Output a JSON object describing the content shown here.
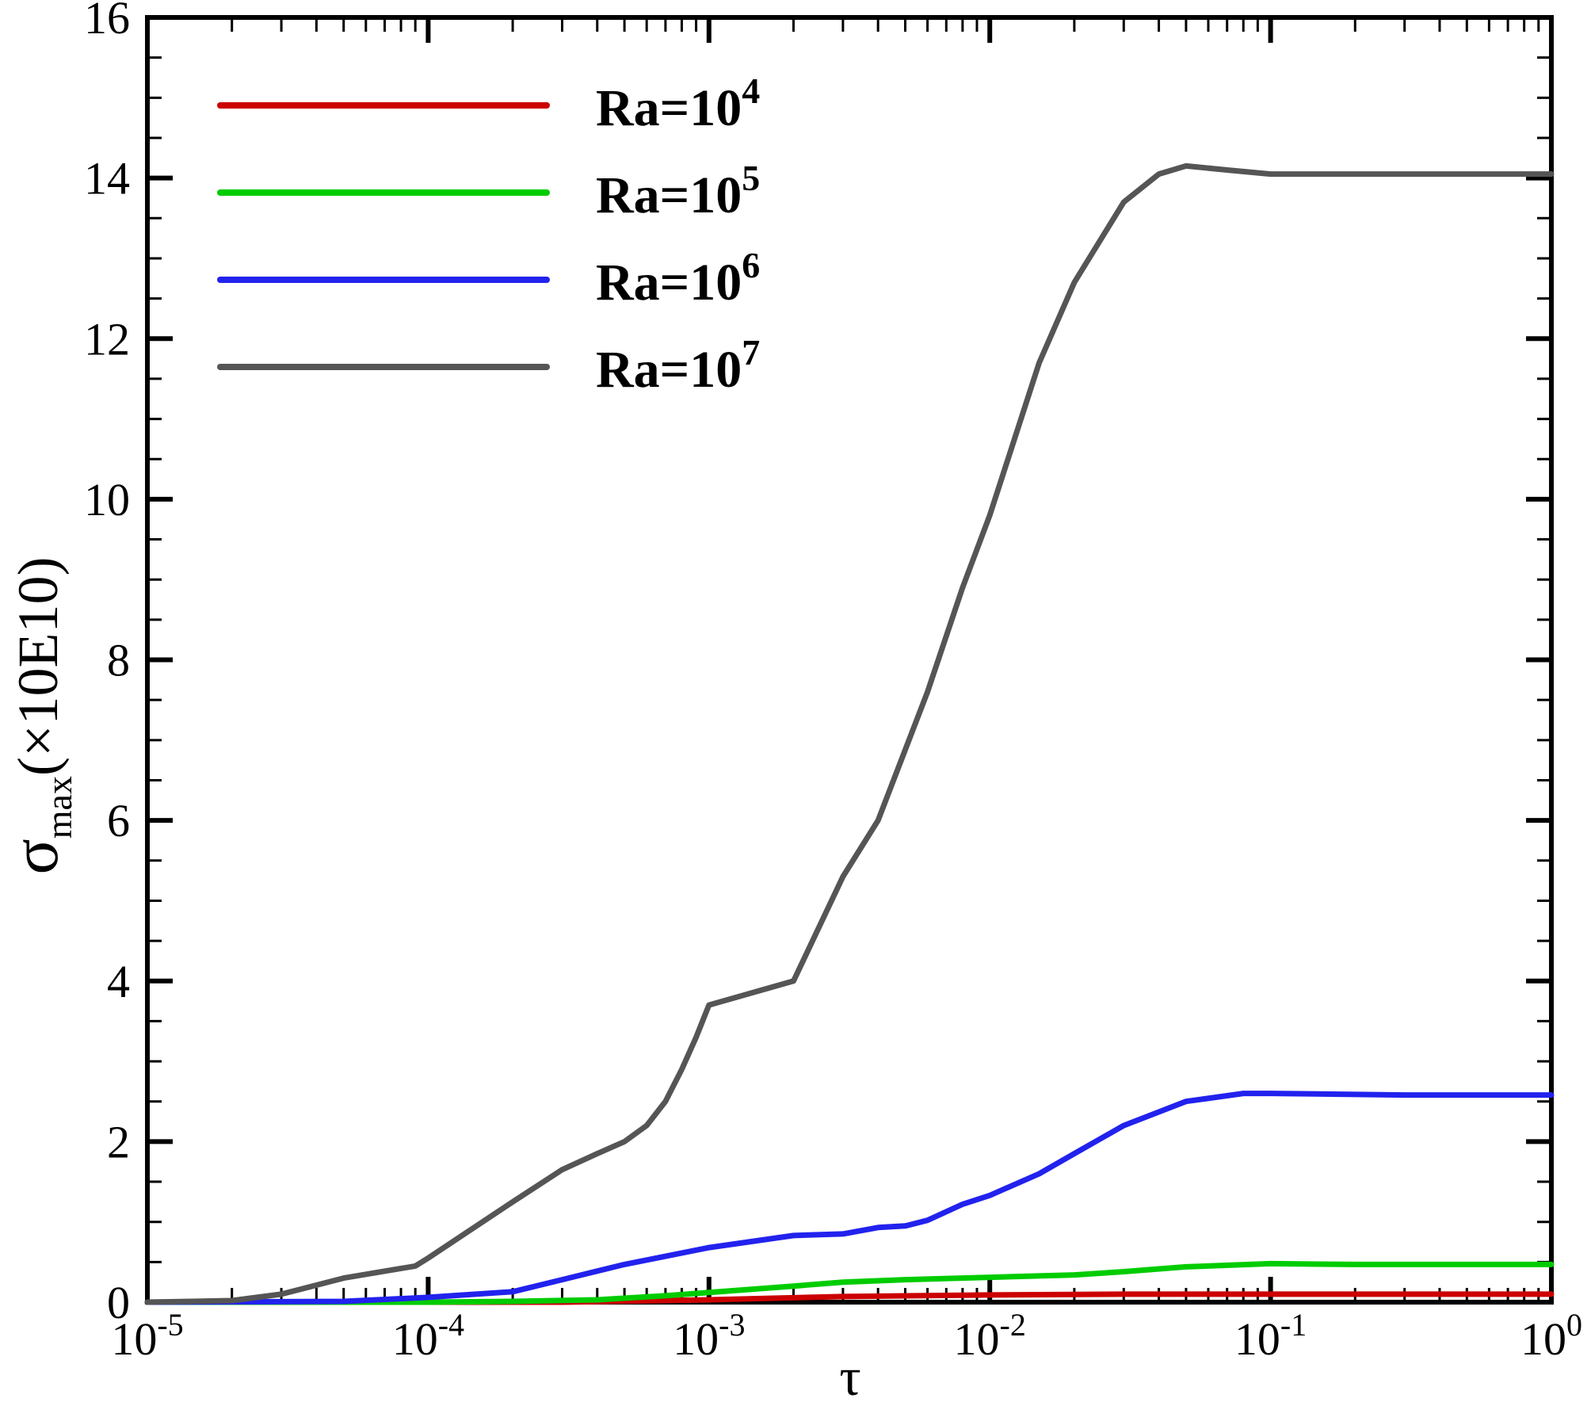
{
  "chart_data": {
    "type": "line",
    "xlabel": "τ",
    "ylabel": {
      "base": "σ",
      "sub": "max",
      "rest": "(×10E10)"
    },
    "x_scale": "log",
    "xlim": [
      1e-05,
      1
    ],
    "ylim": [
      0,
      16
    ],
    "x_ticks": [
      {
        "base": "10",
        "exp": "-5",
        "value": 1e-05
      },
      {
        "base": "10",
        "exp": "-4",
        "value": 0.0001
      },
      {
        "base": "10",
        "exp": "-3",
        "value": 0.001
      },
      {
        "base": "10",
        "exp": "-2",
        "value": 0.01
      },
      {
        "base": "10",
        "exp": "-1",
        "value": 0.1
      },
      {
        "base": "10",
        "exp": "0",
        "value": 1
      }
    ],
    "y_ticks": [
      "0",
      "2",
      "4",
      "6",
      "8",
      "10",
      "12",
      "14",
      "16"
    ],
    "legend_position": "top-left",
    "series": [
      {
        "name": "Ra=10^4",
        "label_base": "Ra=10",
        "label_exp": "4",
        "color": "#cc0000",
        "points": [
          [
            1e-05,
            0.0
          ],
          [
            0.0001,
            0.0
          ],
          [
            0.0003,
            0.0
          ],
          [
            0.001,
            0.03
          ],
          [
            0.003,
            0.07
          ],
          [
            0.01,
            0.09
          ],
          [
            0.03,
            0.1
          ],
          [
            0.1,
            0.1
          ],
          [
            1,
            0.1
          ]
        ]
      },
      {
        "name": "Ra=10^5",
        "label_base": "Ra=10",
        "label_exp": "5",
        "color": "#00cc00",
        "points": [
          [
            1e-05,
            0.0
          ],
          [
            0.0001,
            0.0
          ],
          [
            0.0002,
            0.01
          ],
          [
            0.0004,
            0.03
          ],
          [
            0.0007,
            0.08
          ],
          [
            0.001,
            0.12
          ],
          [
            0.002,
            0.2
          ],
          [
            0.003,
            0.25
          ],
          [
            0.005,
            0.28
          ],
          [
            0.01,
            0.31
          ],
          [
            0.02,
            0.34
          ],
          [
            0.03,
            0.38
          ],
          [
            0.05,
            0.44
          ],
          [
            0.1,
            0.48
          ],
          [
            0.2,
            0.47
          ],
          [
            0.5,
            0.47
          ],
          [
            1,
            0.47
          ]
        ]
      },
      {
        "name": "Ra=10^6",
        "label_base": "Ra=10",
        "label_exp": "6",
        "color": "#2222ee",
        "points": [
          [
            1e-05,
            0.0
          ],
          [
            5e-05,
            0.01
          ],
          [
            0.0001,
            0.06
          ],
          [
            0.0002,
            0.13
          ],
          [
            0.0003,
            0.28
          ],
          [
            0.0005,
            0.47
          ],
          [
            0.001,
            0.68
          ],
          [
            0.002,
            0.83
          ],
          [
            0.003,
            0.85
          ],
          [
            0.004,
            0.93
          ],
          [
            0.005,
            0.95
          ],
          [
            0.006,
            1.02
          ],
          [
            0.008,
            1.22
          ],
          [
            0.01,
            1.33
          ],
          [
            0.015,
            1.6
          ],
          [
            0.02,
            1.85
          ],
          [
            0.03,
            2.2
          ],
          [
            0.05,
            2.5
          ],
          [
            0.08,
            2.6
          ],
          [
            0.1,
            2.6
          ],
          [
            0.3,
            2.58
          ],
          [
            1,
            2.58
          ]
        ]
      },
      {
        "name": "Ra=10^7",
        "label_base": "Ra=10",
        "label_exp": "7",
        "color": "#555555",
        "points": [
          [
            1e-05,
            0.0
          ],
          [
            2e-05,
            0.02
          ],
          [
            3e-05,
            0.1
          ],
          [
            5e-05,
            0.3
          ],
          [
            9e-05,
            0.45
          ],
          [
            0.0001,
            0.55
          ],
          [
            0.0002,
            1.25
          ],
          [
            0.0003,
            1.65
          ],
          [
            0.0004,
            1.85
          ],
          [
            0.0005,
            2.0
          ],
          [
            0.0006,
            2.2
          ],
          [
            0.0007,
            2.5
          ],
          [
            0.0008,
            2.9
          ],
          [
            0.0009,
            3.3
          ],
          [
            0.001,
            3.7
          ],
          [
            0.002,
            4.0
          ],
          [
            0.003,
            5.3
          ],
          [
            0.004,
            6.0
          ],
          [
            0.006,
            7.6
          ],
          [
            0.008,
            8.9
          ],
          [
            0.01,
            9.8
          ],
          [
            0.015,
            11.7
          ],
          [
            0.02,
            12.7
          ],
          [
            0.03,
            13.7
          ],
          [
            0.04,
            14.05
          ],
          [
            0.05,
            14.15
          ],
          [
            0.07,
            14.1
          ],
          [
            0.1,
            14.05
          ],
          [
            0.2,
            14.05
          ],
          [
            1,
            14.05
          ]
        ]
      }
    ]
  }
}
